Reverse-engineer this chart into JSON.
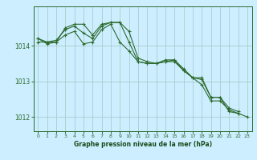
{
  "background_color": "#cceeff",
  "grid_color": "#aacccc",
  "line_color": "#2d6a2d",
  "xlabel": "Graphe pression niveau de la mer (hPa)",
  "xlabel_color": "#1a4a1a",
  "ylim": [
    1011.6,
    1015.1
  ],
  "xlim": [
    -0.5,
    23.5
  ],
  "yticks": [
    1012,
    1013,
    1014
  ],
  "xticks": [
    0,
    1,
    2,
    3,
    4,
    5,
    6,
    7,
    8,
    9,
    10,
    11,
    12,
    13,
    14,
    15,
    16,
    17,
    18,
    19,
    20,
    21,
    22,
    23
  ],
  "series": [
    [
      1014.2,
      1014.1,
      1014.1,
      1014.5,
      1014.6,
      1014.6,
      1014.3,
      1014.6,
      1014.65,
      1014.65,
      1014.1,
      1013.55,
      1013.5,
      1013.5,
      1013.55,
      1013.55,
      1013.3,
      1013.1,
      1013.1,
      1012.55,
      1012.55,
      1012.15,
      1012.1,
      null
    ],
    [
      1014.1,
      1014.1,
      1014.15,
      1014.45,
      1014.55,
      1014.35,
      1014.2,
      1014.55,
      1014.65,
      1014.65,
      1014.4,
      1013.65,
      1013.55,
      1013.5,
      1013.6,
      1013.6,
      1013.35,
      1013.1,
      1013.05,
      1012.55,
      1012.55,
      1012.25,
      1012.15,
      null
    ],
    [
      1014.2,
      1014.05,
      1014.1,
      1014.3,
      1014.4,
      1014.05,
      1014.1,
      1014.45,
      1014.6,
      1014.1,
      1013.85,
      1013.55,
      1013.5,
      1013.5,
      1013.55,
      1013.6,
      1013.3,
      1013.1,
      1012.9,
      1012.45,
      1012.45,
      1012.2,
      1012.1,
      1012.0
    ]
  ]
}
